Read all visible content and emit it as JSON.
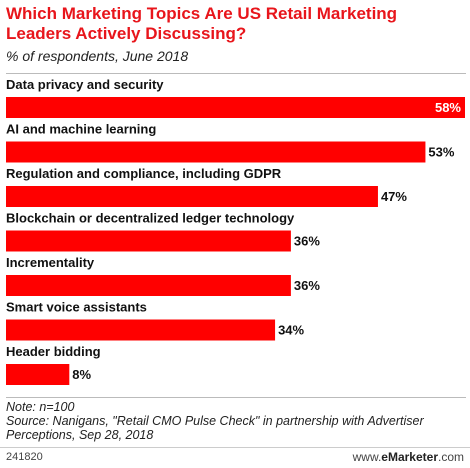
{
  "chart_data": {
    "type": "bar",
    "orientation": "horizontal",
    "title": "Which Marketing Topics Are US Retail Marketing Leaders Actively Discussing?",
    "subtitle": "% of respondents, June 2018",
    "categories": [
      "Data privacy and security",
      "AI and machine learning",
      "Regulation and compliance, including GDPR",
      "Blockchain or decentralized ledger technology",
      "Incrementality",
      "Smart voice assistants",
      "Header bidding"
    ],
    "values": [
      58,
      53,
      47,
      36,
      36,
      34,
      8
    ],
    "value_labels": [
      "58%",
      "53%",
      "47%",
      "36%",
      "36%",
      "34%",
      "8%"
    ],
    "xlim": [
      0,
      58
    ],
    "grid": false,
    "bar_color": "#ff0000"
  },
  "footer": {
    "note": "Note: n=100",
    "source": "Source: Nanigans, \"Retail CMO Pulse Check\" in partnership with Advertiser Perceptions, Sep 28, 2018",
    "chart_id": "241820",
    "brand_prefix": "www.",
    "brand_name": "eMarketer",
    "brand_suffix": ".com"
  }
}
